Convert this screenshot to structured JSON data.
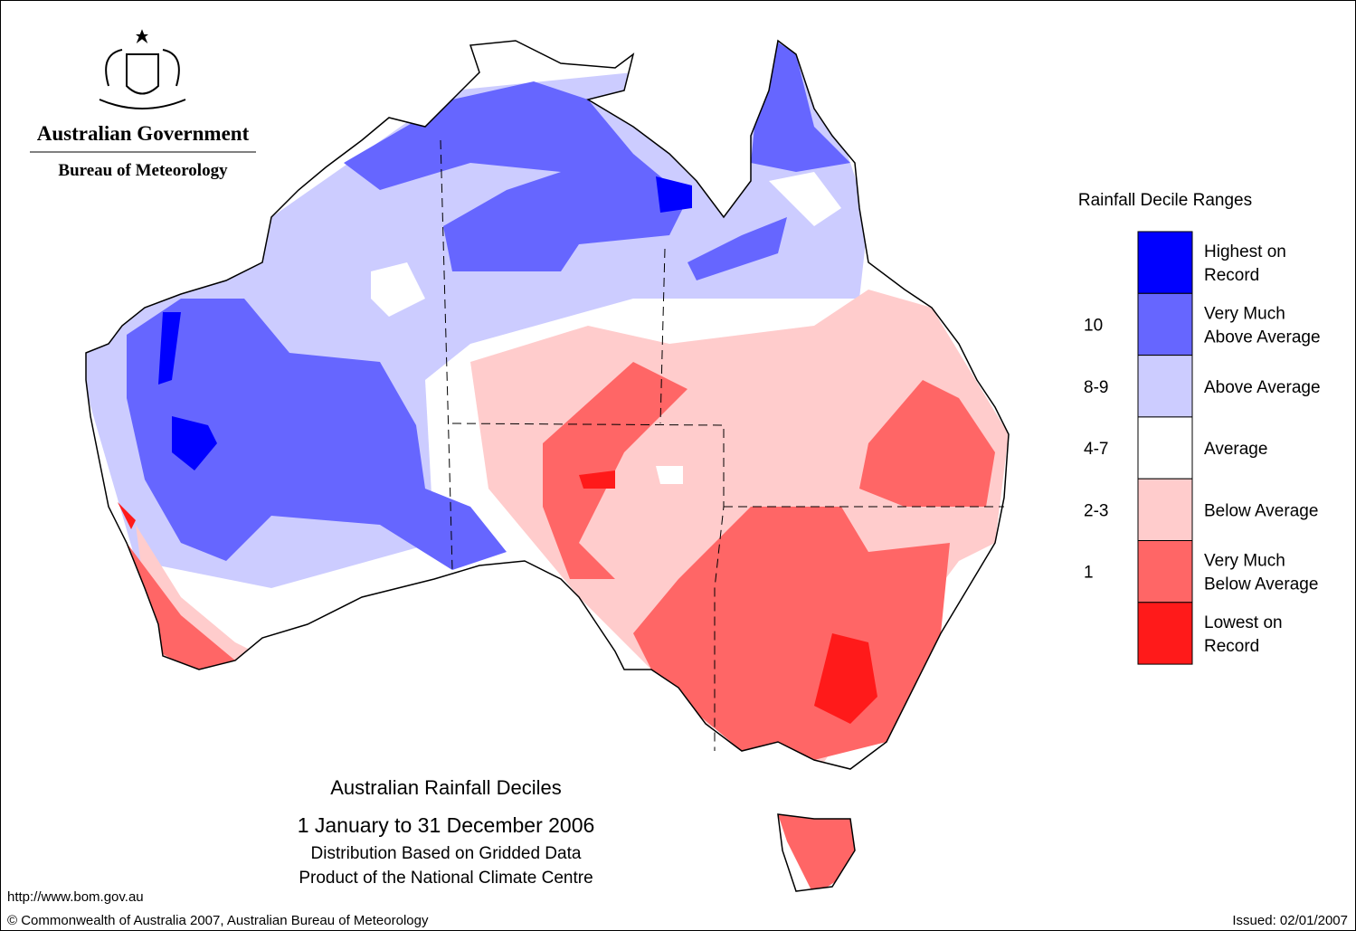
{
  "header": {
    "government": "Australian Government",
    "bureau": "Bureau of Meteorology"
  },
  "legend": {
    "title": "Rainfall Decile Ranges",
    "items": [
      {
        "lines": [
          "Highest on",
          "Record"
        ],
        "color": "#0000ff"
      },
      {
        "lines": [
          "Very Much",
          "Above Average"
        ],
        "color": "#6666ff",
        "decile": "10"
      },
      {
        "lines": [
          "Above Average"
        ],
        "color": "#ccccff",
        "decile": "8-9"
      },
      {
        "lines": [
          "Average"
        ],
        "color": "#ffffff",
        "decile": "4-7"
      },
      {
        "lines": [
          "Below Average"
        ],
        "color": "#ffcccc",
        "decile": "2-3"
      },
      {
        "lines": [
          "Very Much",
          "Below Average"
        ],
        "color": "#ff6666",
        "decile": "1"
      },
      {
        "lines": [
          "Lowest on",
          "Record"
        ],
        "color": "#ff1a1a"
      }
    ]
  },
  "map": {
    "title": "Australian Rainfall Deciles",
    "period": "1 January to 31 December 2006",
    "notes": [
      "Distribution Based on Gridded Data",
      "Product of the National Climate Centre"
    ]
  },
  "footer": {
    "url": "http://www.bom.gov.au",
    "copyright": "© Commonwealth of Australia 2007, Australian Bureau of Meteorology",
    "issued": "Issued: 02/01/2007"
  }
}
